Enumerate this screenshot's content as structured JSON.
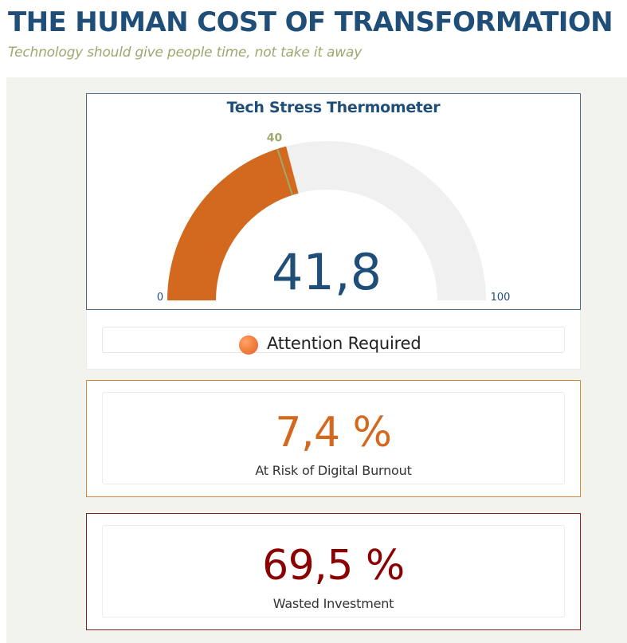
{
  "header": {
    "title": "THE HUMAN COST OF TRANSFORMATION",
    "subtitle": "Technology should give people time, not take it away"
  },
  "gauge": {
    "title": "Tech Stress Thermometer",
    "value": 41.8,
    "value_label": "41,8",
    "min": 0,
    "max": 100,
    "min_label": "0",
    "max_label": "100",
    "target": 40,
    "target_label": "40",
    "fill_color": "#d2691e",
    "track_color": "#f0f0f0",
    "target_color": "#9aaa6e",
    "value_color": "#1f4e79"
  },
  "status": {
    "icon": "orange-circle-icon",
    "text": "Attention Required"
  },
  "kpis": [
    {
      "value": "7,4 %",
      "label": "At Risk of Digital Burnout",
      "color": "#d2691e"
    },
    {
      "value": "69,5 %",
      "label": "Wasted Investment",
      "color": "#8b0000"
    }
  ]
}
